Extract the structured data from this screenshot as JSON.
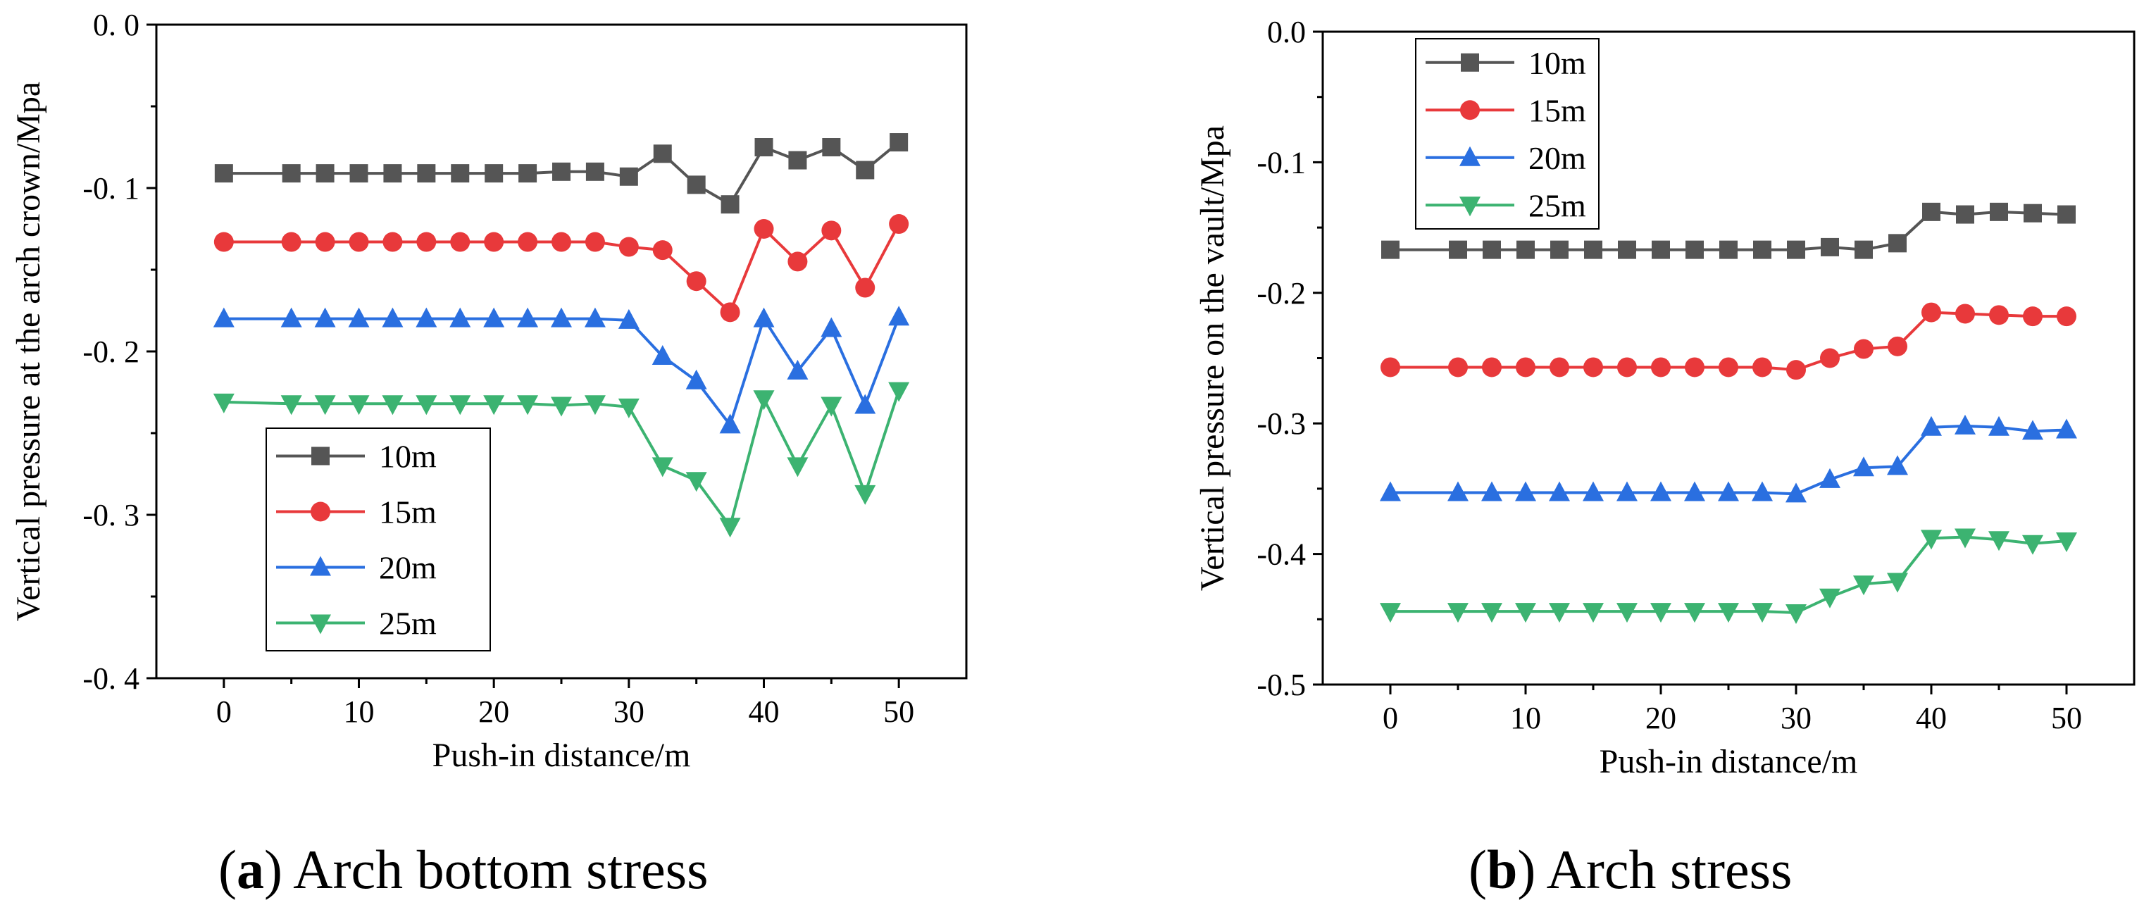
{
  "captions": [
    {
      "letter": "a",
      "text": "Arch bottom stress"
    },
    {
      "letter": "b",
      "text": "Arch stress"
    }
  ],
  "colors": {
    "10m": "#555555",
    "15m": "#e8393b",
    "20m": "#2a6fe0",
    "25m": "#3cb371"
  },
  "chart_data": [
    {
      "type": "line",
      "panel": "a",
      "xlabel": "Push-in distance/m",
      "ylabel": "Vertical pressure at the arch crown/Mpa",
      "xlim": [
        -5,
        55
      ],
      "ylim": [
        -0.4,
        0.0
      ],
      "xticks": [
        0,
        10,
        20,
        30,
        40,
        50
      ],
      "yticks": [
        0.0,
        -0.1,
        -0.2,
        -0.3,
        -0.4
      ],
      "ytick_labels": [
        "0. 0",
        "-0. 1",
        "-0. 2",
        "-0. 3",
        "-0. 4"
      ],
      "xtick_labels": [
        "0",
        "10",
        "20",
        "30",
        "40",
        "50"
      ],
      "legend_position": "bottom-left",
      "x": [
        0,
        5,
        7.5,
        10,
        12.5,
        15,
        17.5,
        20,
        22.5,
        25,
        27.5,
        30,
        32.5,
        35,
        37.5,
        40,
        42.5,
        45,
        47.5,
        50
      ],
      "series": [
        {
          "name": "10m",
          "marker": "square",
          "values": [
            -0.091,
            -0.091,
            -0.091,
            -0.091,
            -0.091,
            -0.091,
            -0.091,
            -0.091,
            -0.091,
            -0.09,
            -0.09,
            -0.093,
            -0.079,
            -0.098,
            -0.11,
            -0.075,
            -0.083,
            -0.075,
            -0.089,
            -0.072
          ]
        },
        {
          "name": "15m",
          "marker": "circle",
          "values": [
            -0.133,
            -0.133,
            -0.133,
            -0.133,
            -0.133,
            -0.133,
            -0.133,
            -0.133,
            -0.133,
            -0.133,
            -0.133,
            -0.136,
            -0.138,
            -0.157,
            -0.176,
            -0.125,
            -0.145,
            -0.126,
            -0.161,
            -0.122
          ]
        },
        {
          "name": "20m",
          "marker": "triangle-up",
          "values": [
            -0.18,
            -0.18,
            -0.18,
            -0.18,
            -0.18,
            -0.18,
            -0.18,
            -0.18,
            -0.18,
            -0.18,
            -0.18,
            -0.181,
            -0.203,
            -0.218,
            -0.245,
            -0.18,
            -0.212,
            -0.186,
            -0.233,
            -0.179
          ]
        },
        {
          "name": "25m",
          "marker": "triangle-down",
          "values": [
            -0.231,
            -0.232,
            -0.232,
            -0.232,
            -0.232,
            -0.232,
            -0.232,
            -0.232,
            -0.232,
            -0.233,
            -0.232,
            -0.234,
            -0.27,
            -0.279,
            -0.307,
            -0.229,
            -0.27,
            -0.233,
            -0.287,
            -0.224
          ]
        }
      ]
    },
    {
      "type": "line",
      "panel": "b",
      "xlabel": "Push-in distance/m",
      "ylabel": "Vertical pressure on the vault/Mpa",
      "xlim": [
        -5,
        55
      ],
      "ylim": [
        -0.5,
        0.0
      ],
      "xticks": [
        0,
        10,
        20,
        30,
        40,
        50
      ],
      "yticks": [
        0.0,
        -0.1,
        -0.2,
        -0.3,
        -0.4,
        -0.5
      ],
      "ytick_labels": [
        "0.0",
        "-0.1",
        "-0.2",
        "-0.3",
        "-0.4",
        "-0.5"
      ],
      "xtick_labels": [
        "0",
        "10",
        "20",
        "30",
        "40",
        "50"
      ],
      "legend_position": "top-left",
      "x": [
        0,
        5,
        7.5,
        10,
        12.5,
        15,
        17.5,
        20,
        22.5,
        25,
        27.5,
        30,
        32.5,
        35,
        37.5,
        40,
        42.5,
        45,
        47.5,
        50
      ],
      "series": [
        {
          "name": "10m",
          "marker": "square",
          "values": [
            -0.167,
            -0.167,
            -0.167,
            -0.167,
            -0.167,
            -0.167,
            -0.167,
            -0.167,
            -0.167,
            -0.167,
            -0.167,
            -0.167,
            -0.165,
            -0.167,
            -0.162,
            -0.138,
            -0.14,
            -0.138,
            -0.139,
            -0.14
          ]
        },
        {
          "name": "15m",
          "marker": "circle",
          "values": [
            -0.257,
            -0.257,
            -0.257,
            -0.257,
            -0.257,
            -0.257,
            -0.257,
            -0.257,
            -0.257,
            -0.257,
            -0.257,
            -0.259,
            -0.25,
            -0.243,
            -0.241,
            -0.215,
            -0.216,
            -0.217,
            -0.218,
            -0.218
          ]
        },
        {
          "name": "20m",
          "marker": "triangle-up",
          "values": [
            -0.353,
            -0.353,
            -0.353,
            -0.353,
            -0.353,
            -0.353,
            -0.353,
            -0.353,
            -0.353,
            -0.353,
            -0.353,
            -0.354,
            -0.343,
            -0.334,
            -0.333,
            -0.303,
            -0.302,
            -0.303,
            -0.306,
            -0.305
          ]
        },
        {
          "name": "25m",
          "marker": "triangle-down",
          "values": [
            -0.444,
            -0.444,
            -0.444,
            -0.444,
            -0.444,
            -0.444,
            -0.444,
            -0.444,
            -0.444,
            -0.444,
            -0.444,
            -0.445,
            -0.433,
            -0.423,
            -0.421,
            -0.388,
            -0.387,
            -0.389,
            -0.392,
            -0.39
          ]
        }
      ]
    }
  ]
}
